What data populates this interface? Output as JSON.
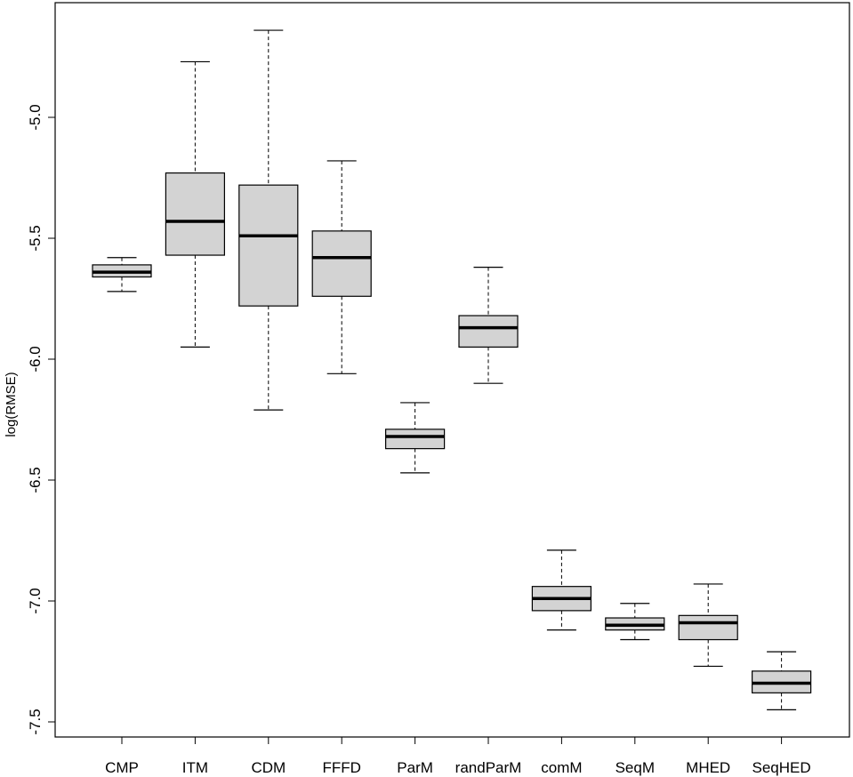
{
  "chart_data": {
    "type": "boxplot",
    "title": "",
    "xlabel": "",
    "ylabel": "log(RMSE)",
    "ylim": [
      -7.56,
      -4.53
    ],
    "yticks": [
      -5.0,
      -5.5,
      -6.0,
      -6.5,
      -7.0,
      -7.5
    ],
    "ytick_labels": [
      "-5.0",
      "-5.5",
      "-6.0",
      "-6.5",
      "-7.0",
      "-7.5"
    ],
    "categories": [
      "CMP",
      "ITM",
      "CDM",
      "FFFD",
      "ParM",
      "randParM",
      "comM",
      "SeqM",
      "MHED",
      "SeqHED"
    ],
    "boxes": [
      {
        "name": "CMP",
        "whisker_low": -5.72,
        "q1": -5.66,
        "median": -5.64,
        "q3": -5.61,
        "whisker_high": -5.58
      },
      {
        "name": "ITM",
        "whisker_low": -5.95,
        "q1": -5.57,
        "median": -5.43,
        "q3": -5.23,
        "whisker_high": -4.77
      },
      {
        "name": "CDM",
        "whisker_low": -6.21,
        "q1": -5.78,
        "median": -5.49,
        "q3": -5.28,
        "whisker_high": -4.64
      },
      {
        "name": "FFFD",
        "whisker_low": -6.06,
        "q1": -5.74,
        "median": -5.58,
        "q3": -5.47,
        "whisker_high": -5.18
      },
      {
        "name": "ParM",
        "whisker_low": -6.47,
        "q1": -6.37,
        "median": -6.32,
        "q3": -6.29,
        "whisker_high": -6.18
      },
      {
        "name": "randParM",
        "whisker_low": -6.1,
        "q1": -5.95,
        "median": -5.87,
        "q3": -5.82,
        "whisker_high": -5.62
      },
      {
        "name": "comM",
        "whisker_low": -7.12,
        "q1": -7.04,
        "median": -6.99,
        "q3": -6.94,
        "whisker_high": -6.79
      },
      {
        "name": "SeqM",
        "whisker_low": -7.16,
        "q1": -7.12,
        "median": -7.1,
        "q3": -7.07,
        "whisker_high": -7.01
      },
      {
        "name": "MHED",
        "whisker_low": -7.27,
        "q1": -7.16,
        "median": -7.09,
        "q3": -7.06,
        "whisker_high": -6.93
      },
      {
        "name": "SeqHED",
        "whisker_low": -7.45,
        "q1": -7.38,
        "median": -7.34,
        "q3": -7.29,
        "whisker_high": -7.21
      }
    ],
    "colors": {
      "box_fill": "#d3d3d3",
      "stroke": "#000000"
    }
  }
}
